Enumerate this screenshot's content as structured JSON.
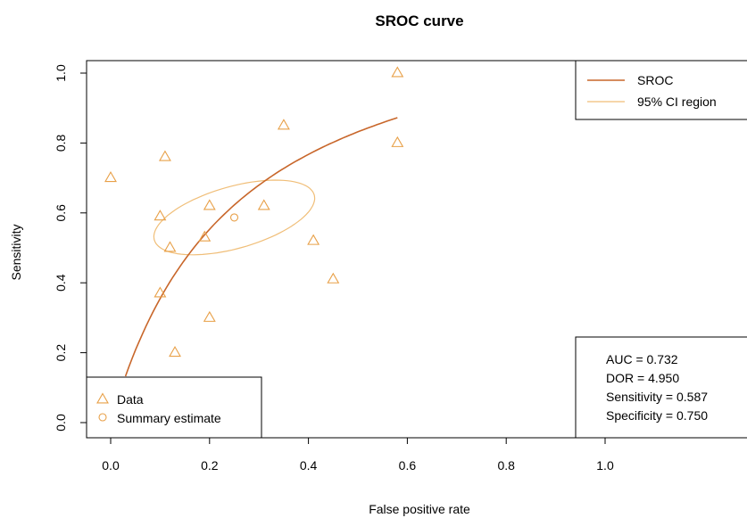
{
  "chart_data": {
    "type": "scatter",
    "title": "SROC curve",
    "xlabel": "False positive rate",
    "ylabel": "Sensitivity",
    "xlim": [
      0,
      1
    ],
    "ylim": [
      0,
      1
    ],
    "xticks": [
      "0.0",
      "0.2",
      "0.4",
      "0.6",
      "0.8",
      "1.0"
    ],
    "yticks": [
      "0.0",
      "0.2",
      "0.4",
      "0.6",
      "0.8",
      "1.0"
    ],
    "grid": false,
    "colors": {
      "data": "#e8a048",
      "sroc": "#c8662a",
      "ci": "#f0be78"
    },
    "series": [
      {
        "name": "Data",
        "marker": "triangle",
        "points": [
          {
            "x": 0.0,
            "y": 0.7
          },
          {
            "x": 0.1,
            "y": 0.59
          },
          {
            "x": 0.11,
            "y": 0.76
          },
          {
            "x": 0.12,
            "y": 0.5
          },
          {
            "x": 0.1,
            "y": 0.37
          },
          {
            "x": 0.13,
            "y": 0.2
          },
          {
            "x": 0.19,
            "y": 0.53
          },
          {
            "x": 0.2,
            "y": 0.62
          },
          {
            "x": 0.2,
            "y": 0.3
          },
          {
            "x": 0.31,
            "y": 0.62
          },
          {
            "x": 0.35,
            "y": 0.85
          },
          {
            "x": 0.41,
            "y": 0.52
          },
          {
            "x": 0.45,
            "y": 0.41
          },
          {
            "x": 0.58,
            "y": 1.0
          },
          {
            "x": 0.58,
            "y": 0.8
          }
        ]
      },
      {
        "name": "Summary estimate",
        "marker": "circle",
        "points": [
          {
            "x": 0.25,
            "y": 0.587
          }
        ]
      },
      {
        "name": "SROC",
        "type": "line",
        "dor": 4.95,
        "x_range": [
          0.03,
          0.58
        ]
      },
      {
        "name": "95% CI region",
        "type": "ellipse",
        "center": {
          "x": 0.25,
          "y": 0.587
        },
        "semi_major": 0.175,
        "semi_minor": 0.085,
        "angle_deg": 25
      }
    ],
    "legend_lines": {
      "position": "top-right",
      "items": [
        "SROC",
        "95% CI region"
      ]
    },
    "legend_points": {
      "position": "bottom-left",
      "items": [
        "Data",
        "Summary estimate"
      ]
    },
    "stats": {
      "position": "bottom-right",
      "lines": [
        "AUC = 0.732",
        "DOR = 4.950",
        "Sensitivity = 0.587",
        "Specificity = 0.750"
      ]
    }
  }
}
